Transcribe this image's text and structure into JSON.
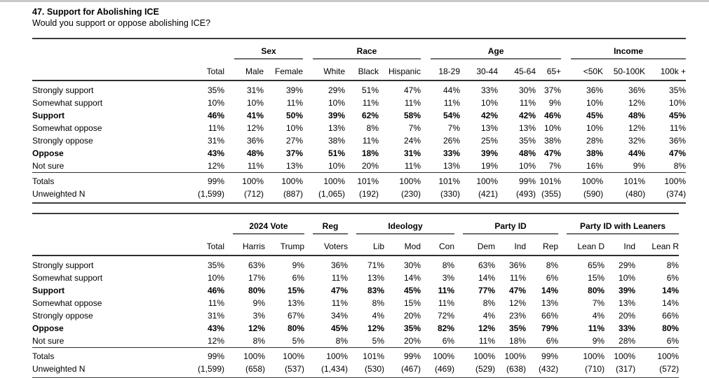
{
  "page": {
    "title": "47. Support for Abolishing ICE",
    "subtitle": "Would you support or oppose abolishing ICE?"
  },
  "tables": [
    {
      "name": "demographics-crosstab",
      "total_label": "Total",
      "groups": [
        {
          "label": "Sex",
          "cols": [
            "Male",
            "Female"
          ]
        },
        {
          "label": "Race",
          "cols": [
            "White",
            "Black",
            "Hispanic"
          ]
        },
        {
          "label": "Age",
          "cols": [
            "18-29",
            "30-44",
            "45-64",
            "65+"
          ]
        },
        {
          "label": "Income",
          "cols": [
            "<50K",
            "50-100K",
            "100k +"
          ]
        }
      ],
      "rows": [
        {
          "label": "Strongly support",
          "bold": false,
          "values": [
            "35%",
            "31%",
            "39%",
            "29%",
            "51%",
            "47%",
            "44%",
            "33%",
            "30%",
            "37%",
            "36%",
            "36%",
            "35%"
          ]
        },
        {
          "label": "Somewhat support",
          "bold": false,
          "values": [
            "10%",
            "10%",
            "11%",
            "10%",
            "11%",
            "11%",
            "11%",
            "10%",
            "11%",
            "9%",
            "10%",
            "12%",
            "10%"
          ]
        },
        {
          "label": "Support",
          "bold": true,
          "values": [
            "46%",
            "41%",
            "50%",
            "39%",
            "62%",
            "58%",
            "54%",
            "42%",
            "42%",
            "46%",
            "45%",
            "48%",
            "45%"
          ]
        },
        {
          "label": "Somewhat oppose",
          "bold": false,
          "values": [
            "11%",
            "12%",
            "10%",
            "13%",
            "8%",
            "7%",
            "7%",
            "13%",
            "13%",
            "10%",
            "10%",
            "12%",
            "11%"
          ]
        },
        {
          "label": "Strongly oppose",
          "bold": false,
          "values": [
            "31%",
            "36%",
            "27%",
            "38%",
            "11%",
            "24%",
            "26%",
            "25%",
            "35%",
            "38%",
            "28%",
            "32%",
            "36%"
          ]
        },
        {
          "label": "Oppose",
          "bold": true,
          "values": [
            "43%",
            "48%",
            "37%",
            "51%",
            "18%",
            "31%",
            "33%",
            "39%",
            "48%",
            "47%",
            "38%",
            "44%",
            "47%"
          ]
        },
        {
          "label": "Not sure",
          "bold": false,
          "values": [
            "12%",
            "11%",
            "13%",
            "10%",
            "20%",
            "11%",
            "13%",
            "19%",
            "10%",
            "7%",
            "16%",
            "9%",
            "8%"
          ]
        }
      ],
      "footer_rows": [
        {
          "label": "Totals",
          "bold": false,
          "values": [
            "99%",
            "100%",
            "100%",
            "100%",
            "101%",
            "100%",
            "101%",
            "100%",
            "99%",
            "101%",
            "100%",
            "101%",
            "100%"
          ]
        },
        {
          "label": "Unweighted N",
          "bold": false,
          "values": [
            "(1,599)",
            "(712)",
            "(887)",
            "(1,065)",
            "(192)",
            "(230)",
            "(330)",
            "(421)",
            "(493)",
            "(355)",
            "(590)",
            "(480)",
            "(374)"
          ]
        }
      ]
    },
    {
      "name": "politics-crosstab",
      "total_label": "Total",
      "groups": [
        {
          "label": "2024 Vote",
          "cols": [
            "Harris",
            "Trump"
          ]
        },
        {
          "label": "Reg",
          "cols": [
            "Voters"
          ]
        },
        {
          "label": "Ideology",
          "cols": [
            "Lib",
            "Mod",
            "Con"
          ]
        },
        {
          "label": "Party ID",
          "cols": [
            "Dem",
            "Ind",
            "Rep"
          ]
        },
        {
          "label": "Party ID with Leaners",
          "cols": [
            "Lean D",
            "Ind",
            "Lean R"
          ]
        }
      ],
      "rows": [
        {
          "label": "Strongly support",
          "bold": false,
          "values": [
            "35%",
            "63%",
            "9%",
            "36%",
            "71%",
            "30%",
            "8%",
            "63%",
            "36%",
            "8%",
            "65%",
            "29%",
            "8%"
          ]
        },
        {
          "label": "Somewhat support",
          "bold": false,
          "values": [
            "10%",
            "17%",
            "6%",
            "11%",
            "13%",
            "14%",
            "3%",
            "14%",
            "11%",
            "6%",
            "15%",
            "10%",
            "6%"
          ]
        },
        {
          "label": "Support",
          "bold": true,
          "values": [
            "46%",
            "80%",
            "15%",
            "47%",
            "83%",
            "45%",
            "11%",
            "77%",
            "47%",
            "14%",
            "80%",
            "39%",
            "14%"
          ]
        },
        {
          "label": "Somewhat oppose",
          "bold": false,
          "values": [
            "11%",
            "9%",
            "13%",
            "11%",
            "8%",
            "15%",
            "11%",
            "8%",
            "12%",
            "13%",
            "7%",
            "13%",
            "14%"
          ]
        },
        {
          "label": "Strongly oppose",
          "bold": false,
          "values": [
            "31%",
            "3%",
            "67%",
            "34%",
            "4%",
            "20%",
            "72%",
            "4%",
            "23%",
            "66%",
            "4%",
            "20%",
            "66%"
          ]
        },
        {
          "label": "Oppose",
          "bold": true,
          "values": [
            "43%",
            "12%",
            "80%",
            "45%",
            "12%",
            "35%",
            "82%",
            "12%",
            "35%",
            "79%",
            "11%",
            "33%",
            "80%"
          ]
        },
        {
          "label": "Not sure",
          "bold": false,
          "values": [
            "12%",
            "8%",
            "5%",
            "8%",
            "5%",
            "20%",
            "6%",
            "11%",
            "18%",
            "6%",
            "9%",
            "28%",
            "6%"
          ]
        }
      ],
      "footer_rows": [
        {
          "label": "Totals",
          "bold": false,
          "values": [
            "99%",
            "100%",
            "100%",
            "100%",
            "101%",
            "99%",
            "100%",
            "100%",
            "100%",
            "99%",
            "100%",
            "100%",
            "100%"
          ]
        },
        {
          "label": "Unweighted N",
          "bold": false,
          "values": [
            "(1,599)",
            "(658)",
            "(537)",
            "(1,434)",
            "(530)",
            "(467)",
            "(469)",
            "(529)",
            "(638)",
            "(432)",
            "(710)",
            "(317)",
            "(572)"
          ]
        }
      ]
    }
  ]
}
